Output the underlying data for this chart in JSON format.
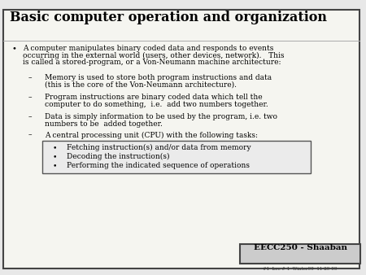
{
  "title": "Basic computer operation and organization",
  "background_color": "#e8e8e8",
  "slide_bg": "#f5f5f0",
  "border_color": "#444444",
  "title_fontsize": 11.5,
  "body_fontsize": 6.5,
  "footer_label": "EECC250 - Shaaban",
  "footer_sub": "#1  Lec # 1  Winter99  11-29-99",
  "bullet1_line1": "A computer manipulates binary coded data and responds to events",
  "bullet1_line2": "occurring in the external world (users, other devices, network).   This",
  "bullet1_line3": "is called a stored-program, or a Von-Neumann machine architecture:",
  "sub1_line1": "Memory is used to store both program instructions and data",
  "sub1_line2": "(this is the core of the Von-Neumann architecture).",
  "sub2_line1": "Program instructions are binary coded data which tell the",
  "sub2_line2": "computer to do something,  i.e.  add two numbers together.",
  "sub3_line1": "Data is simply information to be used by the program, i.e. two",
  "sub3_line2": "numbers to be  added together.",
  "sub4": "A central processing unit (CPU) with the following tasks:",
  "box_bullets": [
    "Fetching instruction(s) and/or data from memory",
    "Decoding the instruction(s)",
    "Performing the indicated sequence of operations"
  ],
  "font_family": "DejaVu Serif"
}
